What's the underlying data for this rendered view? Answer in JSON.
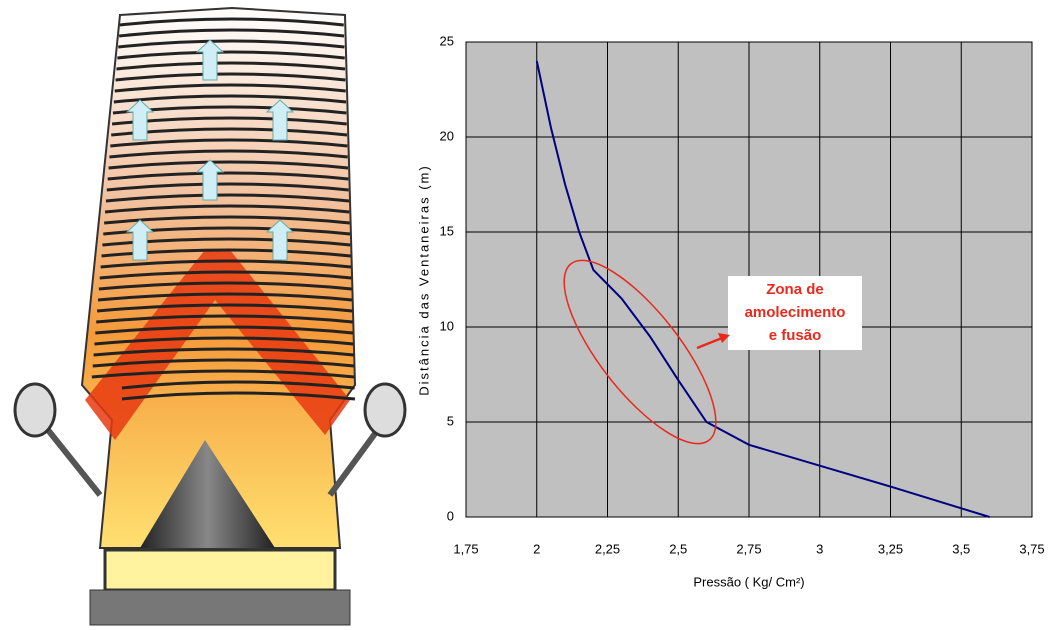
{
  "chart_data": {
    "type": "line",
    "x": [
      2,
      2.05,
      2.1,
      2.15,
      2.2,
      2.3,
      2.4,
      2.5,
      2.6,
      2.75,
      3,
      3.25,
      3.6
    ],
    "values": [
      24,
      20.5,
      17.5,
      15,
      13,
      11.5,
      9.5,
      7.2,
      5,
      3.8,
      2.7,
      1.6,
      0
    ],
    "color": "#000080",
    "xlabel": "Pressão ( Kg/ Cm²)",
    "ylabel": "Distância das Ventaneiras (m)",
    "annotation": [
      "Zona de",
      "amolecimento",
      "e fusão"
    ],
    "xlim": [
      1.75,
      3.75
    ],
    "xticks": [
      {
        "value": 1.75,
        "label": "1,75"
      },
      2,
      {
        "value": 2.25,
        "label": "2,25"
      },
      {
        "value": 2.5,
        "label": "2,5"
      },
      {
        "value": 2.75,
        "label": "2,75"
      },
      3,
      {
        "value": 3.25,
        "label": "3,25"
      },
      {
        "value": 3.5,
        "label": "3,5"
      },
      {
        "value": 3.75,
        "label": "3,75"
      }
    ],
    "ylim": [
      0,
      25
    ],
    "yticks": [
      0,
      5,
      10,
      15,
      20,
      25
    ],
    "grid": true
  }
}
